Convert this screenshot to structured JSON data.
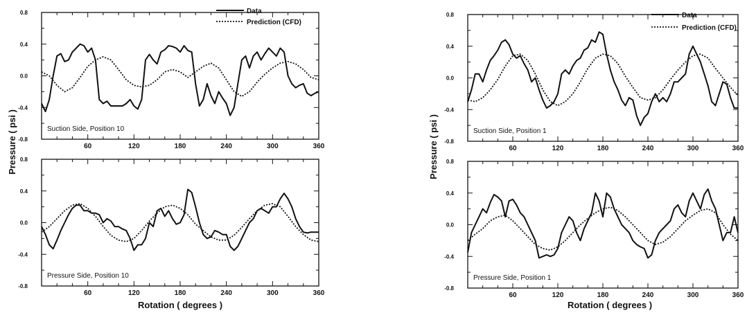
{
  "figure": {
    "legend": {
      "data": "Data",
      "prediction": "Prediction (CFD)"
    },
    "ylabel": "Pressure ( psi )",
    "xlabel": "Rotation ( degrees )"
  },
  "chart_data": [
    {
      "type": "line",
      "title": "Suction Side, Position 10",
      "xlim": [
        0,
        360
      ],
      "ylim": [
        -0.8,
        0.8
      ],
      "xticks": [
        60,
        120,
        180,
        240,
        300,
        360
      ],
      "yticks": [
        -0.8,
        -0.4,
        0.0,
        0.4,
        0.8
      ],
      "series": [
        {
          "name": "Data",
          "style": "solid",
          "x": [
            0,
            5,
            10,
            15,
            20,
            25,
            30,
            35,
            40,
            45,
            50,
            55,
            60,
            65,
            70,
            75,
            80,
            85,
            90,
            95,
            100,
            105,
            110,
            115,
            120,
            125,
            130,
            135,
            140,
            145,
            150,
            155,
            160,
            165,
            170,
            175,
            180,
            185,
            190,
            195,
            200,
            205,
            210,
            215,
            220,
            225,
            230,
            235,
            240,
            245,
            250,
            255,
            260,
            265,
            270,
            275,
            280,
            285,
            290,
            295,
            300,
            305,
            310,
            315,
            320,
            325,
            330,
            335,
            340,
            345,
            350,
            355,
            360
          ],
          "y": [
            -0.35,
            -0.45,
            -0.3,
            0.0,
            0.25,
            0.28,
            0.18,
            0.2,
            0.3,
            0.35,
            0.4,
            0.38,
            0.3,
            0.35,
            0.2,
            -0.3,
            -0.35,
            -0.32,
            -0.38,
            -0.38,
            -0.38,
            -0.38,
            -0.35,
            -0.3,
            -0.38,
            -0.42,
            -0.3,
            0.2,
            0.27,
            0.2,
            0.15,
            0.3,
            0.33,
            0.38,
            0.37,
            0.35,
            0.3,
            0.38,
            0.32,
            0.3,
            -0.1,
            -0.38,
            -0.3,
            -0.1,
            -0.25,
            -0.35,
            -0.2,
            -0.28,
            -0.35,
            -0.5,
            -0.4,
            -0.1,
            0.2,
            0.25,
            0.1,
            0.25,
            0.3,
            0.2,
            0.28,
            0.35,
            0.3,
            0.25,
            0.35,
            0.3,
            0.0,
            -0.1,
            -0.15,
            -0.12,
            -0.1,
            -0.22,
            -0.25,
            -0.22,
            -0.2
          ]
        },
        {
          "name": "Prediction (CFD)",
          "style": "dotted",
          "x": [
            0,
            10,
            20,
            30,
            40,
            50,
            60,
            70,
            80,
            90,
            100,
            110,
            120,
            130,
            140,
            150,
            160,
            170,
            180,
            190,
            200,
            210,
            220,
            230,
            240,
            250,
            260,
            270,
            280,
            290,
            300,
            310,
            320,
            330,
            340,
            350,
            360
          ],
          "y": [
            0.05,
            0.0,
            -0.12,
            -0.2,
            -0.15,
            -0.02,
            0.12,
            0.2,
            0.24,
            0.2,
            0.08,
            -0.05,
            -0.12,
            -0.14,
            -0.12,
            -0.05,
            0.05,
            0.08,
            0.05,
            -0.02,
            0.05,
            0.12,
            0.16,
            0.1,
            -0.05,
            -0.2,
            -0.26,
            -0.2,
            -0.08,
            0.02,
            0.1,
            0.16,
            0.18,
            0.15,
            0.08,
            -0.02,
            -0.05
          ]
        }
      ]
    },
    {
      "type": "line",
      "title": "Pressure Side, Position 10",
      "xlim": [
        0,
        360
      ],
      "ylim": [
        -0.8,
        0.8
      ],
      "xticks": [
        60,
        120,
        180,
        240,
        300,
        360
      ],
      "yticks": [
        -0.8,
        -0.4,
        0.0,
        0.4,
        0.8
      ],
      "series": [
        {
          "name": "Data",
          "style": "solid",
          "x": [
            0,
            5,
            10,
            15,
            20,
            25,
            30,
            35,
            40,
            45,
            50,
            55,
            60,
            65,
            70,
            75,
            80,
            85,
            90,
            95,
            100,
            105,
            110,
            115,
            120,
            125,
            130,
            135,
            140,
            145,
            150,
            155,
            160,
            165,
            170,
            175,
            180,
            185,
            190,
            195,
            200,
            205,
            210,
            215,
            220,
            225,
            230,
            235,
            240,
            245,
            250,
            255,
            260,
            265,
            270,
            275,
            280,
            285,
            290,
            295,
            300,
            305,
            310,
            315,
            320,
            325,
            330,
            335,
            340,
            345,
            350,
            355,
            360
          ],
          "y": [
            -0.05,
            -0.15,
            -0.28,
            -0.33,
            -0.22,
            -0.1,
            0.0,
            0.1,
            0.18,
            0.22,
            0.22,
            0.15,
            0.15,
            0.12,
            0.12,
            0.1,
            0.0,
            0.05,
            0.02,
            -0.05,
            -0.05,
            -0.08,
            -0.1,
            -0.2,
            -0.35,
            -0.28,
            -0.28,
            -0.2,
            0.0,
            -0.05,
            0.15,
            0.18,
            0.08,
            0.15,
            0.05,
            -0.02,
            0.0,
            0.1,
            0.42,
            0.38,
            0.2,
            0.0,
            -0.15,
            -0.2,
            -0.18,
            -0.1,
            -0.12,
            -0.15,
            -0.15,
            -0.3,
            -0.35,
            -0.3,
            -0.2,
            -0.1,
            0.0,
            0.05,
            0.15,
            0.18,
            0.15,
            0.12,
            0.2,
            0.2,
            0.3,
            0.37,
            0.3,
            0.2,
            0.05,
            -0.05,
            -0.12,
            -0.13,
            -0.12,
            -0.12,
            -0.12
          ]
        },
        {
          "name": "Prediction (CFD)",
          "style": "dotted",
          "x": [
            0,
            10,
            20,
            30,
            40,
            50,
            60,
            70,
            80,
            90,
            100,
            110,
            120,
            130,
            140,
            150,
            160,
            170,
            180,
            190,
            200,
            210,
            220,
            230,
            240,
            250,
            260,
            270,
            280,
            290,
            300,
            310,
            320,
            330,
            340,
            350,
            360
          ],
          "y": [
            -0.12,
            -0.05,
            0.05,
            0.15,
            0.22,
            0.24,
            0.18,
            0.08,
            -0.05,
            -0.16,
            -0.22,
            -0.24,
            -0.2,
            -0.1,
            0.02,
            0.12,
            0.2,
            0.22,
            0.18,
            0.1,
            -0.02,
            -0.1,
            -0.18,
            -0.22,
            -0.22,
            -0.16,
            -0.06,
            0.05,
            0.15,
            0.22,
            0.24,
            0.2,
            0.08,
            -0.05,
            -0.15,
            -0.22,
            -0.24
          ]
        }
      ]
    },
    {
      "type": "line",
      "title": "Suction Side, Position 1",
      "xlim": [
        0,
        360
      ],
      "ylim": [
        -0.8,
        0.8
      ],
      "xticks": [
        60,
        120,
        180,
        240,
        300,
        360
      ],
      "yticks": [
        -0.8,
        -0.4,
        0.0,
        0.4,
        0.8
      ],
      "series": [
        {
          "name": "Data",
          "style": "solid",
          "x": [
            0,
            5,
            10,
            15,
            20,
            25,
            30,
            35,
            40,
            45,
            50,
            55,
            60,
            65,
            70,
            75,
            80,
            85,
            90,
            95,
            100,
            105,
            110,
            115,
            120,
            125,
            130,
            135,
            140,
            145,
            150,
            155,
            160,
            165,
            170,
            175,
            180,
            185,
            190,
            195,
            200,
            205,
            210,
            215,
            220,
            225,
            230,
            235,
            240,
            245,
            250,
            255,
            260,
            265,
            270,
            275,
            280,
            285,
            290,
            295,
            300,
            305,
            310,
            315,
            320,
            325,
            330,
            335,
            340,
            345,
            350,
            355,
            360
          ],
          "y": [
            -0.3,
            -0.15,
            0.05,
            0.05,
            -0.05,
            0.1,
            0.22,
            0.28,
            0.35,
            0.45,
            0.48,
            0.42,
            0.3,
            0.25,
            0.28,
            0.18,
            0.1,
            -0.05,
            0.0,
            -0.15,
            -0.28,
            -0.38,
            -0.35,
            -0.3,
            -0.2,
            0.05,
            0.1,
            0.05,
            0.15,
            0.22,
            0.25,
            0.35,
            0.38,
            0.48,
            0.45,
            0.58,
            0.55,
            0.3,
            0.1,
            -0.05,
            -0.15,
            -0.28,
            -0.35,
            -0.25,
            -0.28,
            -0.48,
            -0.6,
            -0.5,
            -0.45,
            -0.3,
            -0.2,
            -0.3,
            -0.25,
            -0.3,
            -0.2,
            -0.05,
            -0.05,
            0.0,
            0.05,
            0.3,
            0.4,
            0.3,
            0.2,
            0.05,
            -0.1,
            -0.3,
            -0.35,
            -0.2,
            -0.05,
            -0.08,
            -0.25,
            -0.38,
            -0.38
          ]
        },
        {
          "name": "Prediction (CFD)",
          "style": "dotted",
          "x": [
            0,
            10,
            20,
            30,
            40,
            50,
            60,
            70,
            80,
            90,
            100,
            110,
            120,
            130,
            140,
            150,
            160,
            170,
            180,
            190,
            200,
            210,
            220,
            230,
            240,
            250,
            260,
            270,
            280,
            290,
            300,
            310,
            320,
            330,
            340,
            350,
            360
          ],
          "y": [
            -0.28,
            -0.3,
            -0.25,
            -0.15,
            -0.02,
            0.15,
            0.28,
            0.3,
            0.22,
            0.05,
            -0.15,
            -0.3,
            -0.35,
            -0.3,
            -0.2,
            -0.05,
            0.12,
            0.25,
            0.3,
            0.28,
            0.18,
            0.02,
            -0.12,
            -0.25,
            -0.28,
            -0.25,
            -0.15,
            -0.02,
            0.1,
            0.2,
            0.28,
            0.3,
            0.25,
            0.12,
            0.0,
            -0.12,
            -0.22
          ]
        }
      ]
    },
    {
      "type": "line",
      "title": "Pressure Side, Position 1",
      "xlim": [
        0,
        360
      ],
      "ylim": [
        -0.8,
        0.8
      ],
      "xticks": [
        60,
        120,
        180,
        240,
        300,
        360
      ],
      "yticks": [
        -0.8,
        -0.4,
        0.0,
        0.4,
        0.8
      ],
      "series": [
        {
          "name": "Data",
          "style": "solid",
          "x": [
            0,
            5,
            10,
            15,
            20,
            25,
            30,
            35,
            40,
            45,
            50,
            55,
            60,
            65,
            70,
            75,
            80,
            85,
            90,
            95,
            100,
            105,
            110,
            115,
            120,
            125,
            130,
            135,
            140,
            145,
            150,
            155,
            160,
            165,
            170,
            175,
            180,
            185,
            190,
            195,
            200,
            205,
            210,
            215,
            220,
            225,
            230,
            235,
            240,
            245,
            250,
            255,
            260,
            265,
            270,
            275,
            280,
            285,
            290,
            295,
            300,
            305,
            310,
            315,
            320,
            325,
            330,
            335,
            340,
            345,
            350,
            355,
            360
          ],
          "y": [
            -0.35,
            -0.1,
            0.0,
            0.1,
            0.2,
            0.15,
            0.28,
            0.38,
            0.35,
            0.3,
            0.1,
            0.3,
            0.32,
            0.25,
            0.15,
            0.1,
            0.0,
            -0.1,
            -0.2,
            -0.42,
            -0.4,
            -0.38,
            -0.4,
            -0.38,
            -0.3,
            -0.1,
            0.0,
            0.1,
            0.05,
            -0.1,
            -0.2,
            -0.05,
            0.05,
            0.15,
            0.4,
            0.3,
            0.1,
            0.4,
            0.35,
            0.2,
            0.1,
            0.0,
            -0.05,
            -0.1,
            -0.2,
            -0.25,
            -0.28,
            -0.3,
            -0.42,
            -0.38,
            -0.2,
            -0.1,
            -0.05,
            0.0,
            0.05,
            0.2,
            0.25,
            0.15,
            0.1,
            0.3,
            0.4,
            0.3,
            0.2,
            0.38,
            0.45,
            0.3,
            0.2,
            0.0,
            -0.2,
            -0.1,
            -0.1,
            0.1,
            -0.1
          ]
        },
        {
          "name": "Prediction (CFD)",
          "style": "dotted",
          "x": [
            0,
            10,
            20,
            30,
            40,
            50,
            60,
            70,
            80,
            90,
            100,
            110,
            120,
            130,
            140,
            150,
            160,
            170,
            180,
            190,
            200,
            210,
            220,
            230,
            240,
            250,
            260,
            270,
            280,
            290,
            300,
            310,
            320,
            330,
            340,
            350,
            360
          ],
          "y": [
            -0.2,
            -0.12,
            -0.05,
            0.05,
            0.1,
            0.12,
            0.05,
            -0.05,
            -0.15,
            -0.25,
            -0.3,
            -0.32,
            -0.28,
            -0.2,
            -0.1,
            0.0,
            0.08,
            0.15,
            0.2,
            0.22,
            0.18,
            0.1,
            0.0,
            -0.1,
            -0.2,
            -0.25,
            -0.22,
            -0.15,
            -0.05,
            0.05,
            0.12,
            0.18,
            0.2,
            0.15,
            0.0,
            -0.12,
            -0.2
          ]
        }
      ]
    }
  ]
}
